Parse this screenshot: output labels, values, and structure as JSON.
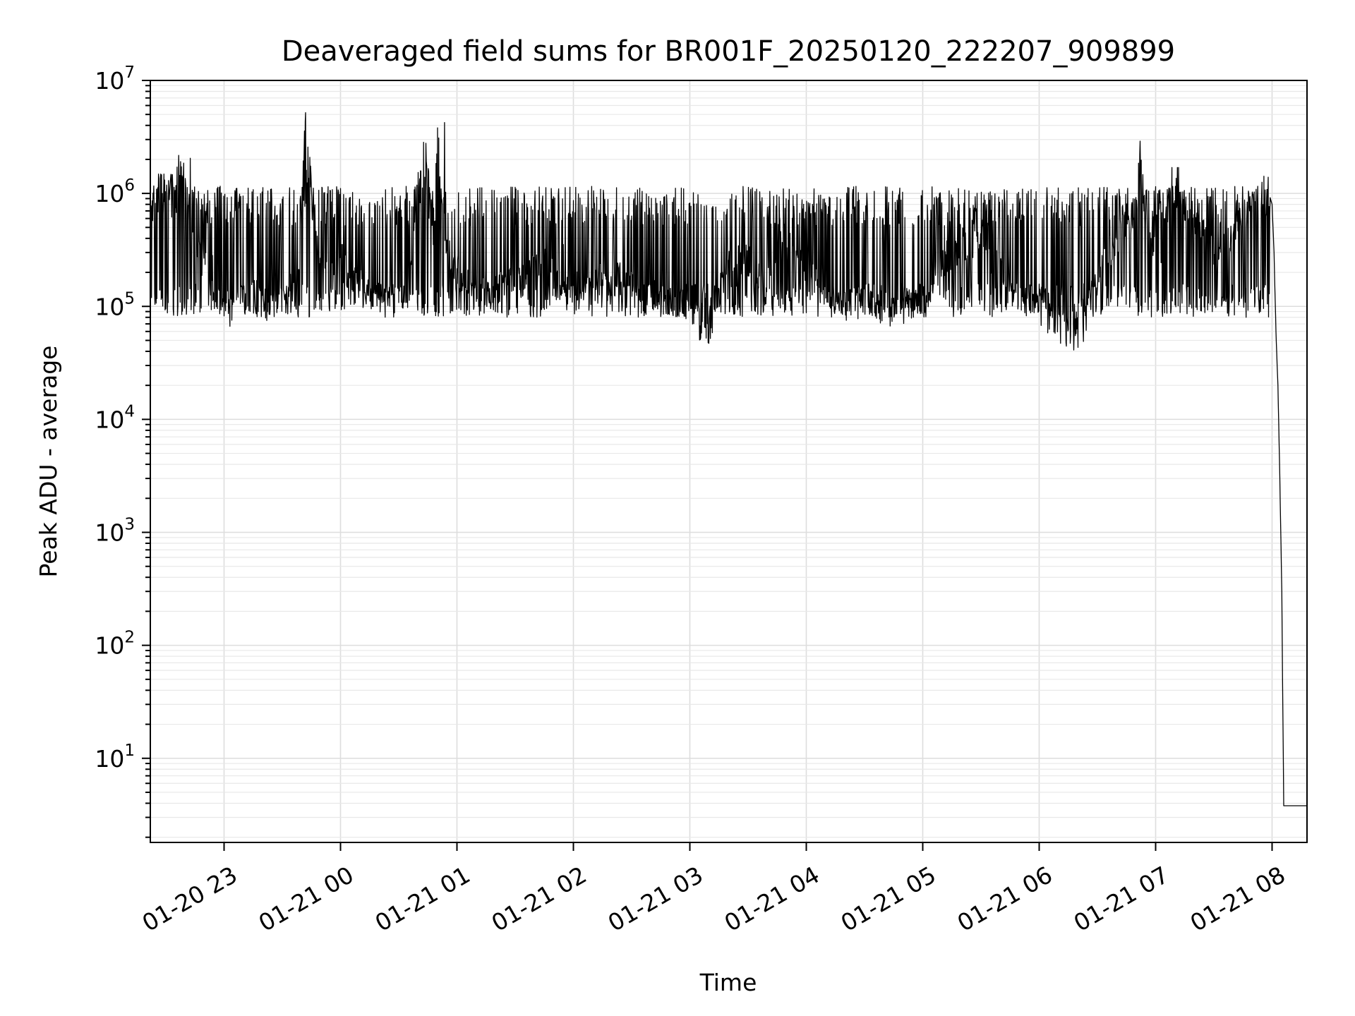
{
  "chart_data": {
    "type": "line",
    "title": "Deaveraged field sums for BR001F_20250120_222207_909899",
    "xlabel": "Time",
    "ylabel": "Peak ADU - average",
    "yscale": "log",
    "ylim": [
      1.8,
      10000000
    ],
    "xlim": [
      "2025-01-20 22:22",
      "2025-01-21 08:18"
    ],
    "grid": true,
    "x_tick_labels": [
      "01-20 23",
      "01-21 00",
      "01-21 01",
      "01-21 02",
      "01-21 03",
      "01-21 04",
      "01-21 05",
      "01-21 06",
      "01-21 07",
      "01-21 08"
    ],
    "x_ticks": [
      "2025-01-20 23:00",
      "2025-01-21 00:00",
      "2025-01-21 01:00",
      "2025-01-21 02:00",
      "2025-01-21 03:00",
      "2025-01-21 04:00",
      "2025-01-21 05:00",
      "2025-01-21 06:00",
      "2025-01-21 07:00",
      "2025-01-21 08:00"
    ],
    "y_ticks": [
      {
        "base": "10",
        "exp": "1",
        "value": 10
      },
      {
        "base": "10",
        "exp": "2",
        "value": 100
      },
      {
        "base": "10",
        "exp": "3",
        "value": 1000
      },
      {
        "base": "10",
        "exp": "4",
        "value": 10000
      },
      {
        "base": "10",
        "exp": "5",
        "value": 100000
      },
      {
        "base": "10",
        "exp": "6",
        "value": 1000000
      },
      {
        "base": "10",
        "exp": "7",
        "value": 10000000
      }
    ],
    "line_color": "#000000",
    "series": [
      {
        "points": [
          [
            "2025-01-20 22:22",
            850000
          ],
          [
            "2025-01-20 22:26",
            1050000
          ],
          [
            "2025-01-20 22:30",
            1150000
          ],
          [
            "2025-01-20 22:34",
            1300000
          ],
          [
            "2025-01-20 22:37",
            1600000
          ],
          [
            "2025-01-20 22:40",
            1450000
          ],
          [
            "2025-01-20 22:43",
            500000
          ],
          [
            "2025-01-20 22:47",
            300000
          ],
          [
            "2025-01-20 22:52",
            200000
          ],
          [
            "2025-01-20 22:57",
            120000
          ],
          [
            "2025-01-20 23:02",
            90000
          ],
          [
            "2025-01-20 23:08",
            110000
          ],
          [
            "2025-01-20 23:15",
            120000
          ],
          [
            "2025-01-20 23:22",
            100000
          ],
          [
            "2025-01-20 23:30",
            130000
          ],
          [
            "2025-01-20 23:37",
            150000
          ],
          [
            "2025-01-20 23:42",
            5000000
          ],
          [
            "2025-01-20 23:47",
            350000
          ],
          [
            "2025-01-20 23:55",
            250000
          ],
          [
            "2025-01-21 00:05",
            200000
          ],
          [
            "2025-01-21 00:15",
            120000
          ],
          [
            "2025-01-21 00:25",
            110000
          ],
          [
            "2025-01-21 00:35",
            130000
          ],
          [
            "2025-01-21 00:43",
            4200000
          ],
          [
            "2025-01-21 00:48",
            400000
          ],
          [
            "2025-01-21 00:50",
            3000000
          ],
          [
            "2025-01-21 00:55",
            300000
          ],
          [
            "2025-01-21 01:05",
            150000
          ],
          [
            "2025-01-21 01:15",
            130000
          ],
          [
            "2025-01-21 01:30",
            180000
          ],
          [
            "2025-01-21 01:45",
            250000
          ],
          [
            "2025-01-21 01:55",
            130000
          ],
          [
            "2025-01-21 02:10",
            170000
          ],
          [
            "2025-01-21 02:25",
            180000
          ],
          [
            "2025-01-21 02:35",
            120000
          ],
          [
            "2025-01-21 02:45",
            100000
          ],
          [
            "2025-01-21 02:55",
            110000
          ],
          [
            "2025-01-21 03:05",
            70000
          ],
          [
            "2025-01-21 03:10",
            60000
          ],
          [
            "2025-01-21 03:20",
            300000
          ],
          [
            "2025-01-21 03:30",
            250000
          ],
          [
            "2025-01-21 03:40",
            150000
          ],
          [
            "2025-01-21 03:48",
            400000
          ],
          [
            "2025-01-21 04:00",
            200000
          ],
          [
            "2025-01-21 04:10",
            120000
          ],
          [
            "2025-01-21 04:20",
            100000
          ],
          [
            "2025-01-21 04:30",
            110000
          ],
          [
            "2025-01-21 04:45",
            90000
          ],
          [
            "2025-01-21 05:00",
            110000
          ],
          [
            "2025-01-21 05:10",
            250000
          ],
          [
            "2025-01-21 05:20",
            350000
          ],
          [
            "2025-01-21 05:30",
            400000
          ],
          [
            "2025-01-21 05:40",
            200000
          ],
          [
            "2025-01-21 05:50",
            90000
          ],
          [
            "2025-01-21 06:00",
            100000
          ],
          [
            "2025-01-21 06:08",
            70000
          ],
          [
            "2025-01-21 06:15",
            50000
          ],
          [
            "2025-01-21 06:22",
            60000
          ],
          [
            "2025-01-21 06:30",
            200000
          ],
          [
            "2025-01-21 06:40",
            400000
          ],
          [
            "2025-01-21 06:50",
            700000
          ],
          [
            "2025-01-21 06:52",
            2300000
          ],
          [
            "2025-01-21 06:56",
            400000
          ],
          [
            "2025-01-21 07:03",
            300000
          ],
          [
            "2025-01-21 07:08",
            1200000
          ],
          [
            "2025-01-21 07:15",
            800000
          ],
          [
            "2025-01-21 07:22",
            500000
          ],
          [
            "2025-01-21 07:30",
            300000
          ],
          [
            "2025-01-21 07:38",
            400000
          ],
          [
            "2025-01-21 07:45",
            600000
          ],
          [
            "2025-01-21 07:52",
            1000000
          ],
          [
            "2025-01-21 07:57",
            1200000
          ],
          [
            "2025-01-21 08:00",
            800000
          ],
          [
            "2025-01-21 08:01",
            300000
          ],
          [
            "2025-01-21 08:02",
            60000
          ],
          [
            "2025-01-21 08:03",
            20000
          ],
          [
            "2025-01-21 08:04",
            3000
          ],
          [
            "2025-01-21 08:05",
            300
          ],
          [
            "2025-01-21 08:06",
            3.8
          ],
          [
            "2025-01-21 08:18",
            3.8
          ]
        ],
        "noise_band": {
          "lower": 80000,
          "upper": 1300000
        }
      }
    ]
  }
}
